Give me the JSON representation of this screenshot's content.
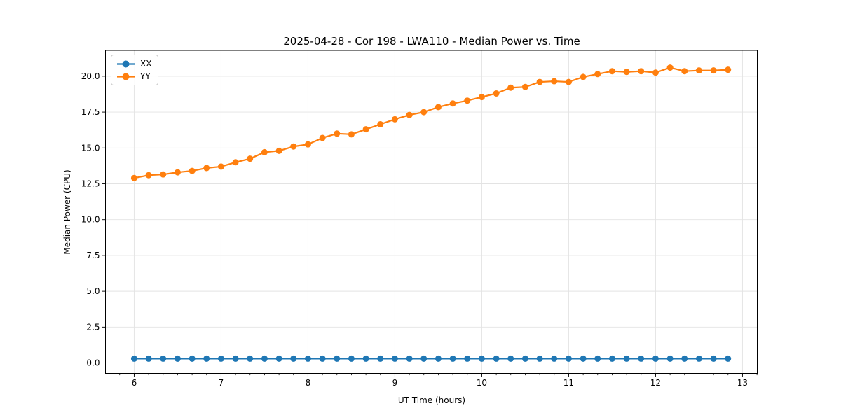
{
  "chart_data": {
    "type": "line",
    "title": "2025-04-28 - Cor 198 - LWA110 - Median Power vs. Time",
    "xlabel": "UT Time (hours)",
    "ylabel": "Median Power (CPU)",
    "x": [
      6.0,
      6.167,
      6.333,
      6.5,
      6.667,
      6.833,
      7.0,
      7.167,
      7.333,
      7.5,
      7.667,
      7.833,
      8.0,
      8.167,
      8.333,
      8.5,
      8.667,
      8.833,
      9.0,
      9.167,
      9.333,
      9.5,
      9.667,
      9.833,
      10.0,
      10.167,
      10.333,
      10.5,
      10.667,
      10.833,
      11.0,
      11.167,
      11.333,
      11.5,
      11.667,
      11.833,
      12.0,
      12.167,
      12.333,
      12.5,
      12.667,
      12.833
    ],
    "series": [
      {
        "name": "XX",
        "color": "#1f77b4",
        "values": [
          0.3,
          0.3,
          0.3,
          0.3,
          0.3,
          0.3,
          0.3,
          0.3,
          0.3,
          0.3,
          0.3,
          0.3,
          0.3,
          0.3,
          0.3,
          0.3,
          0.3,
          0.3,
          0.3,
          0.3,
          0.3,
          0.3,
          0.3,
          0.3,
          0.3,
          0.3,
          0.3,
          0.3,
          0.3,
          0.3,
          0.3,
          0.3,
          0.3,
          0.3,
          0.3,
          0.3,
          0.3,
          0.3,
          0.3,
          0.3,
          0.3,
          0.3
        ]
      },
      {
        "name": "YY",
        "color": "#ff7f0e",
        "values": [
          12.9,
          13.1,
          13.15,
          13.3,
          13.4,
          13.6,
          13.7,
          14.0,
          14.25,
          14.7,
          14.8,
          15.1,
          15.25,
          15.7,
          16.0,
          15.95,
          16.3,
          16.65,
          17.0,
          17.3,
          17.5,
          17.85,
          18.1,
          18.3,
          18.55,
          18.8,
          19.2,
          19.25,
          19.6,
          19.65,
          19.6,
          19.95,
          20.15,
          20.35,
          20.3,
          20.35,
          20.25,
          20.6,
          20.35,
          20.4,
          20.4,
          20.45
        ]
      }
    ],
    "xlim": [
      5.67,
      13.17
    ],
    "ylim": [
      -0.73,
      21.8
    ],
    "xticks": [
      6,
      7,
      8,
      9,
      10,
      11,
      12,
      13
    ],
    "xtick_labels": [
      "6",
      "7",
      "8",
      "9",
      "10",
      "11",
      "12",
      "13"
    ],
    "x_minor_step": 0.16667,
    "yticks": [
      0,
      2.5,
      5,
      7.5,
      10,
      12.5,
      15,
      17.5,
      20
    ],
    "ytick_labels": [
      "0.0",
      "2.5",
      "5.0",
      "7.5",
      "10.0",
      "12.5",
      "15.0",
      "17.5",
      "20.0"
    ],
    "grid": true,
    "legend_position": "upper left",
    "marker": "o",
    "line_width": 2.2,
    "marker_radius": 4.5,
    "grid_color": "#e3e3e3",
    "spine_color": "#000000",
    "tick_color": "#000000",
    "background": "#ffffff"
  }
}
